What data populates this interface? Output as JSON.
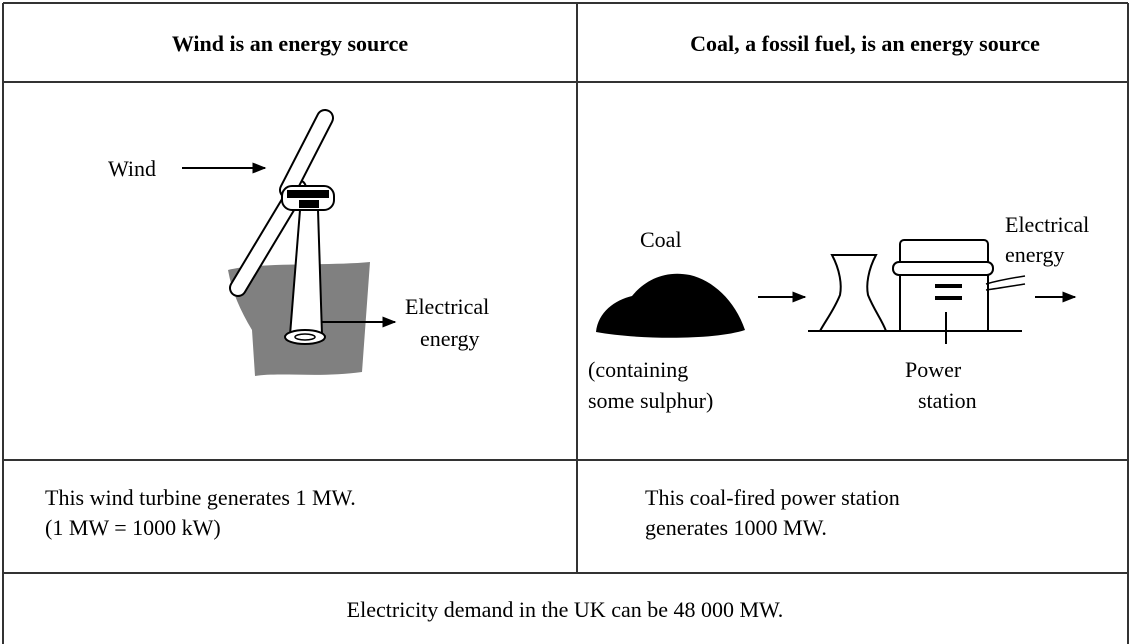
{
  "header": {
    "left": "Wind is an energy source",
    "right": "Coal, a fossil fuel, is an energy source"
  },
  "wind_diagram": {
    "wind": "Wind",
    "output": [
      "Electrical",
      "energy"
    ]
  },
  "coal_diagram": {
    "coal": "Coal",
    "coal_note": [
      "(containing",
      "some sulphur)"
    ],
    "station": [
      "Power",
      "station"
    ],
    "output": [
      "Electrical",
      "energy"
    ]
  },
  "facts": {
    "left": [
      "This wind turbine generates 1 MW.",
      "(1 MW = 1000 kW)"
    ],
    "right": [
      "This coal-fired power station",
      "generates 1000 MW."
    ]
  },
  "footer": "Electricity demand in the UK can be 48 000 MW."
}
